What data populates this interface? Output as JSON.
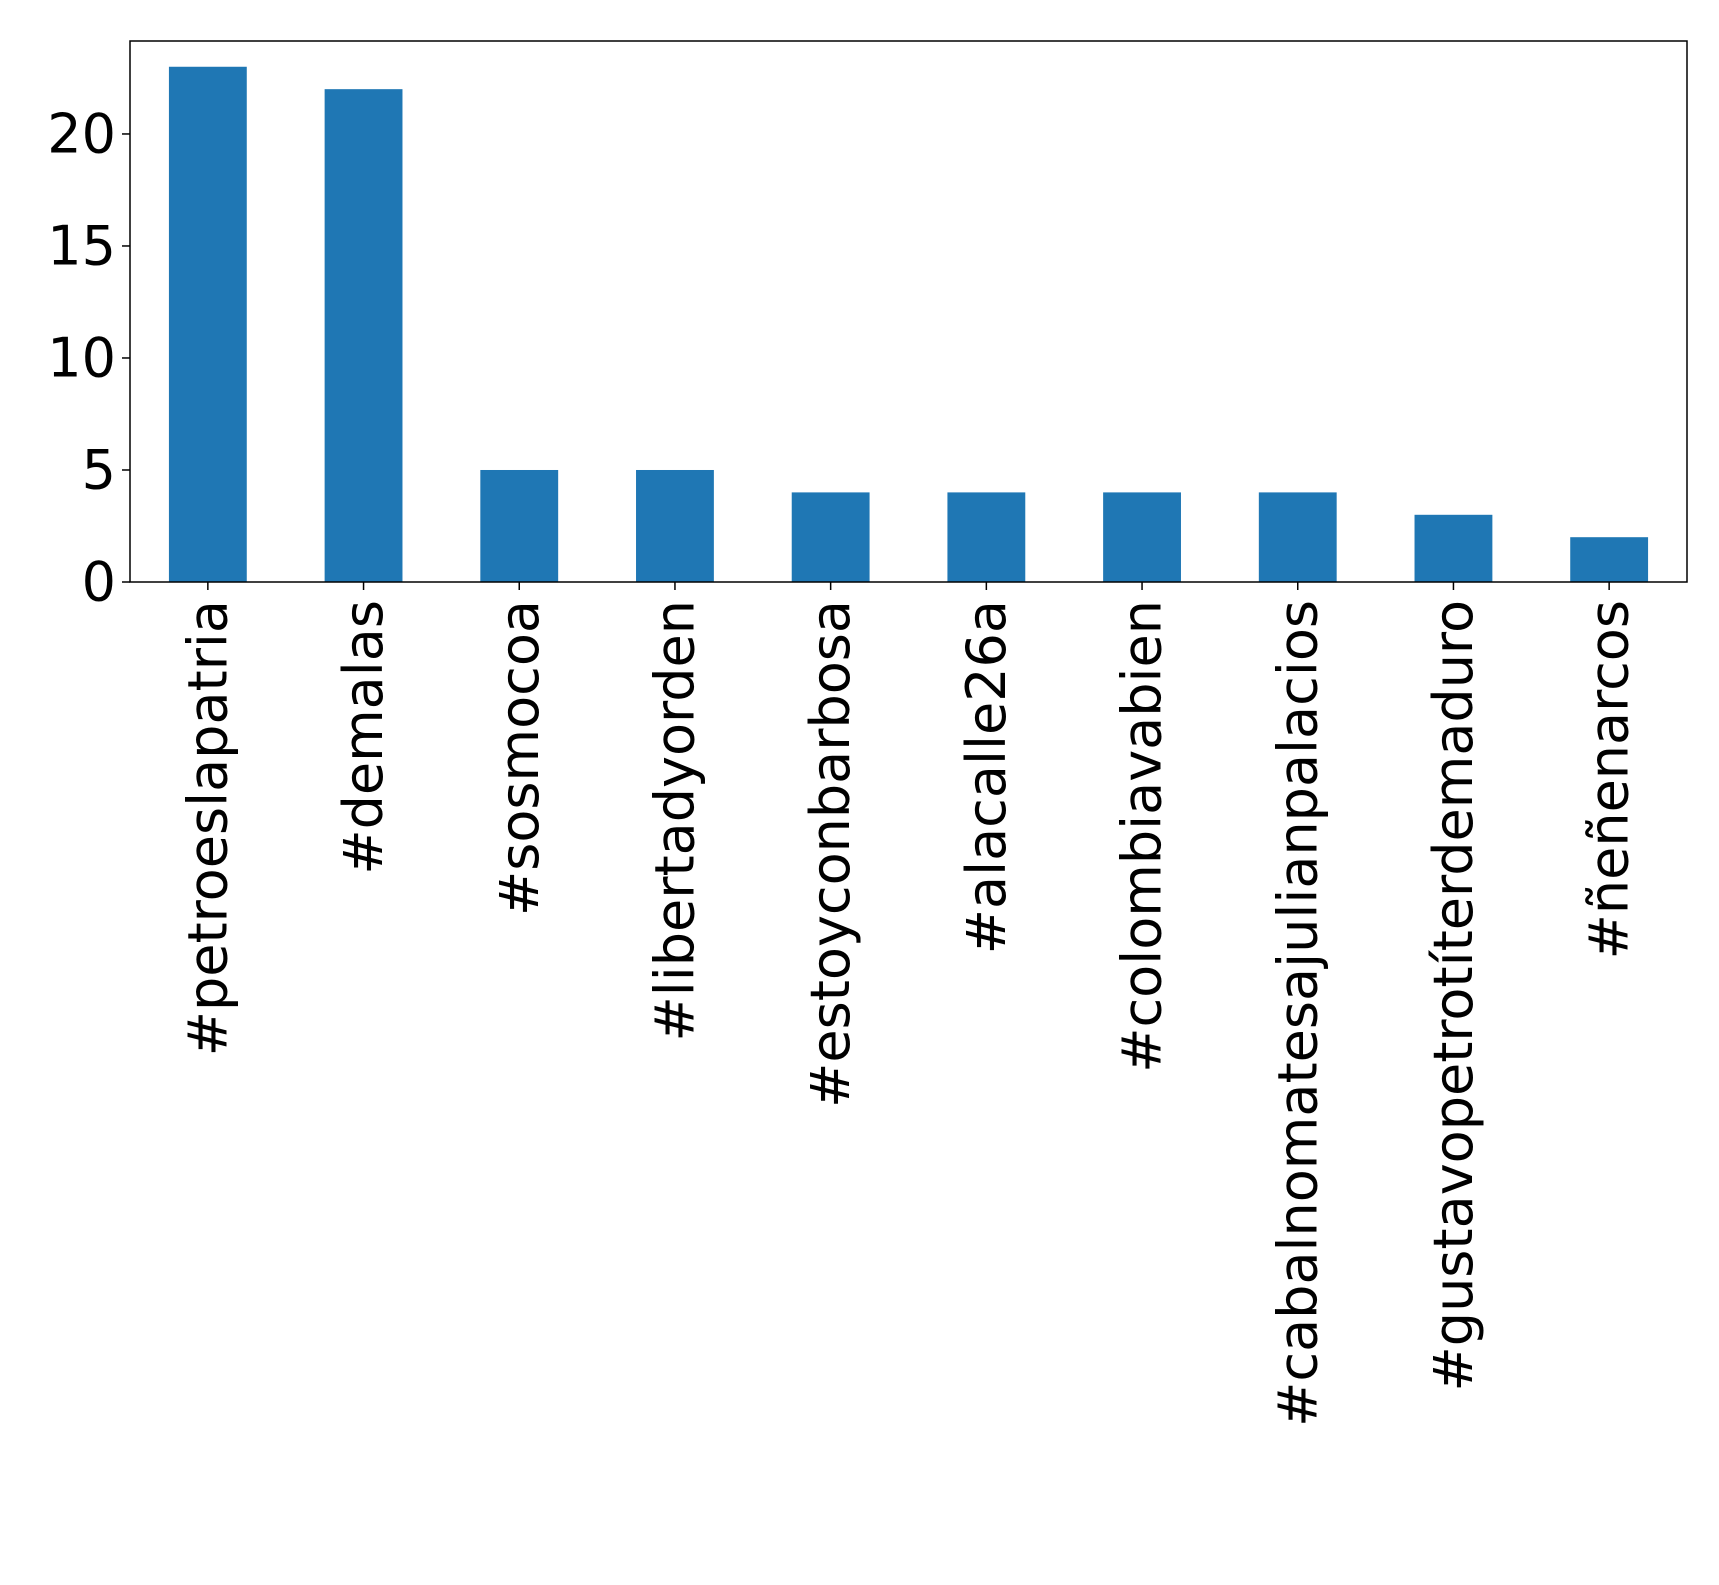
{
  "chart_data": {
    "type": "bar",
    "title": "",
    "xlabel": "",
    "ylabel": "",
    "categories": [
      "#petroeslapatria",
      "#demalas",
      "#sosmocoa",
      "#libertadyorden",
      "#estoyconbarbosa",
      "#alacalle26a",
      "#colombiavabien",
      "#cabalnomatesajulianpalacios",
      "#gustavopetrotíterdemaduro",
      "#ñeñenarcos"
    ],
    "values": [
      23,
      22,
      5,
      5,
      4,
      4,
      4,
      4,
      3,
      2
    ],
    "ylim": [
      0,
      24.15
    ],
    "yticks": [
      0,
      5,
      10,
      15,
      20
    ],
    "grid": false,
    "bar_color": "#1f77b4"
  }
}
